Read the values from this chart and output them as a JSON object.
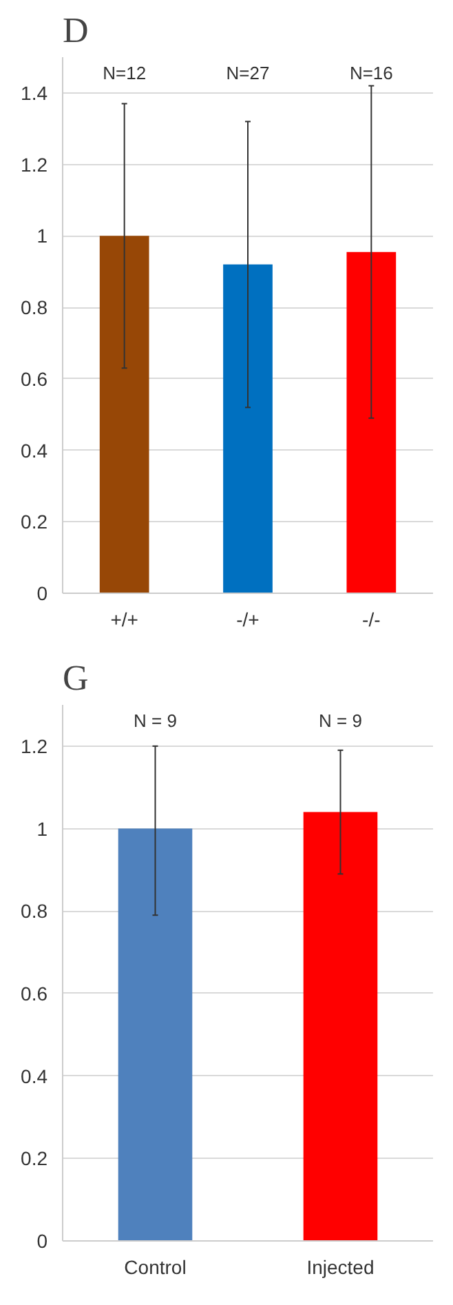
{
  "chart_data": [
    {
      "type": "bar",
      "title": "D",
      "categories": [
        "+/+",
        "-/+",
        "-/-"
      ],
      "values": [
        1.0,
        0.92,
        0.955
      ],
      "colors": [
        "#974706",
        "#0070c0",
        "#ff0000"
      ],
      "errors": [
        [
          0.63,
          1.37
        ],
        [
          0.52,
          1.32
        ],
        [
          0.49,
          1.42
        ]
      ],
      "ylim": [
        0,
        1.5
      ],
      "yticks": [
        0,
        0.2,
        0.4,
        0.6,
        0.8,
        1,
        1.2,
        1.4
      ],
      "grid": "y",
      "annotations": [
        "N=12",
        "N=27",
        "N=16"
      ]
    },
    {
      "type": "bar",
      "title": "G",
      "categories": [
        "Control",
        "Injected"
      ],
      "values": [
        1.0,
        1.04
      ],
      "colors": [
        "#4f81bd",
        "#ff0000"
      ],
      "errors": [
        [
          0.79,
          1.2
        ],
        [
          0.89,
          1.19
        ]
      ],
      "ylim": [
        0,
        1.3
      ],
      "yticks": [
        0,
        0.2,
        0.4,
        0.6,
        0.8,
        1,
        1.2
      ],
      "grid": "y",
      "annotations": [
        "N = 9",
        "N = 9"
      ]
    }
  ]
}
